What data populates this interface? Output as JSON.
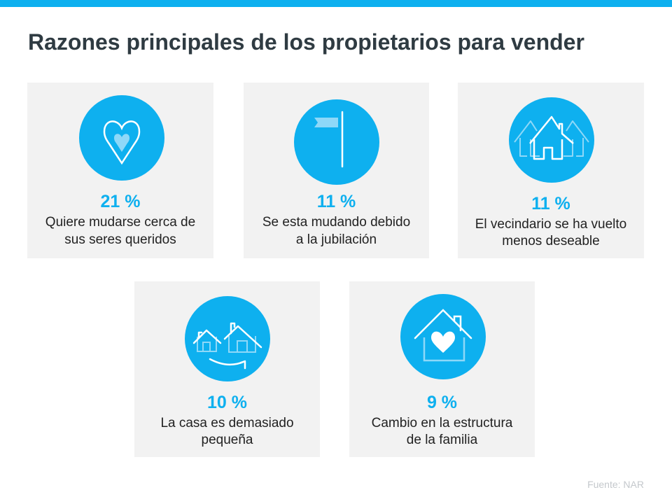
{
  "title": "Razones principales de los propietarios para vender",
  "accent_color": "#0eb0ef",
  "cards": [
    {
      "icon": "heart-icon",
      "percent": "21 %",
      "line1": "Quiere mudarse  cerca de",
      "line2": "sus seres queridos"
    },
    {
      "icon": "flag-icon",
      "percent": "11 %",
      "line1": "Se esta mudando  debido",
      "line2": "a la jubilación"
    },
    {
      "icon": "neighborhood-houses-icon",
      "percent": "11 %",
      "line1": "El vecindario se ha vuelto",
      "line2": "menos deseable"
    },
    {
      "icon": "house-upgrade-icon",
      "percent": "10 %",
      "line1": "La casa es demasiado",
      "line2": "pequeña"
    },
    {
      "icon": "house-heart-icon",
      "percent": "9 %",
      "line1": "Cambio  en la estructura",
      "line2": "de la familia"
    }
  ],
  "source": "Fuente:  NAR"
}
